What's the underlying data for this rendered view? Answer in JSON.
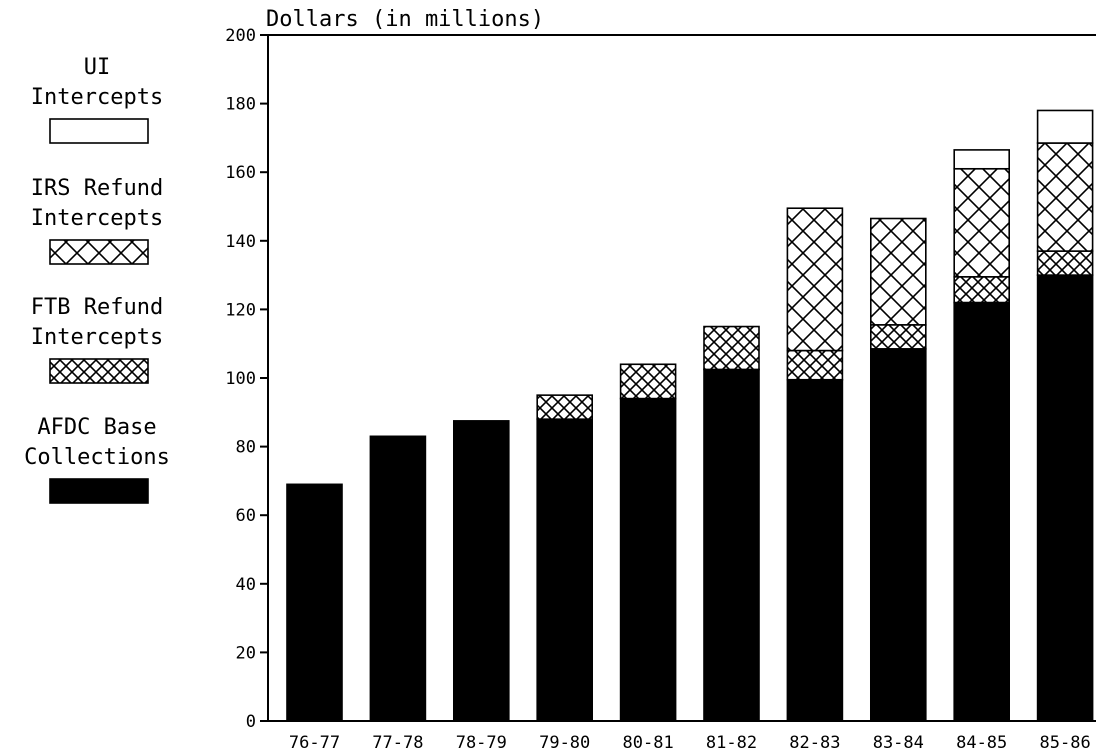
{
  "chart_data": {
    "type": "bar",
    "stacked": true,
    "title": "",
    "ylabel": "Dollars (in millions)",
    "xlabel": "",
    "ylim": [
      0,
      200
    ],
    "yticks": [
      0,
      20,
      40,
      60,
      80,
      100,
      120,
      140,
      160,
      180,
      200
    ],
    "grid": false,
    "legend_position": "left",
    "categories": [
      "76-77",
      "77-78",
      "78-79",
      "79-80",
      "80-81",
      "81-82",
      "82-83",
      "83-84",
      "84-85",
      "85-86"
    ],
    "series": [
      {
        "key": "afdc",
        "legend_lines": [
          "AFDC Base",
          "Collections"
        ],
        "fill": "solid",
        "values": [
          69,
          83,
          87.5,
          88,
          94,
          102.5,
          99.5,
          108.5,
          122,
          130
        ]
      },
      {
        "key": "ftb",
        "legend_lines": [
          "FTB Refund",
          "Intercepts"
        ],
        "fill": "crosshatch-dense",
        "values": [
          0,
          0,
          0,
          7,
          10,
          12.5,
          8.5,
          7,
          7.5,
          7
        ]
      },
      {
        "key": "irs",
        "legend_lines": [
          "IRS Refund",
          "Intercepts"
        ],
        "fill": "crosshatch",
        "values": [
          0,
          0,
          0,
          0,
          0,
          0,
          41.5,
          31,
          31.5,
          31.5
        ]
      },
      {
        "key": "ui",
        "legend_lines": [
          "UI",
          "Intercepts"
        ],
        "fill": "white",
        "values": [
          0,
          0,
          0,
          0,
          0,
          0,
          0,
          0,
          5.5,
          9.5
        ]
      }
    ],
    "legend_order": [
      "ui",
      "irs",
      "ftb",
      "afdc"
    ]
  }
}
